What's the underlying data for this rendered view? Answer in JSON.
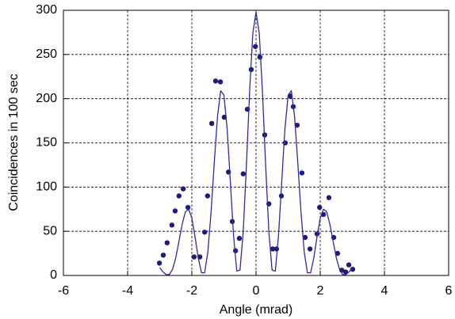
{
  "chart_data": {
    "type": "scatter",
    "xlabel": "Angle (mrad)",
    "ylabel": "Coincidences in 100 sec",
    "xlim": [
      -6,
      6
    ],
    "ylim": [
      0,
      300
    ],
    "xticks": [
      -6,
      -4,
      -2,
      0,
      2,
      4,
      6
    ],
    "yticks": [
      0,
      50,
      100,
      150,
      200,
      250,
      300
    ],
    "grid": true,
    "series": [
      {
        "mode": "markers",
        "color": "#1c1c7a",
        "x": [
          -3.01,
          -2.89,
          -2.77,
          -2.62,
          -2.52,
          -2.4,
          -2.27,
          -2.12,
          -1.93,
          -1.75,
          -1.6,
          -1.51,
          -1.38,
          -1.26,
          -1.11,
          -0.99,
          -0.86,
          -0.74,
          -0.64,
          -0.52,
          -0.4,
          -0.27,
          -0.15,
          -0.02,
          0.12,
          0.27,
          0.4,
          0.52,
          0.64,
          0.79,
          0.91,
          1.06,
          1.16,
          1.28,
          1.43,
          1.53,
          1.68,
          1.9,
          1.98,
          2.1,
          2.27,
          2.42,
          2.54,
          2.67,
          2.79,
          2.89,
          3.01
        ],
        "y": [
          14,
          23,
          37,
          57,
          73,
          90,
          98,
          77,
          21,
          21,
          49,
          90,
          172,
          220,
          219,
          179,
          117,
          61,
          28,
          42,
          115,
          188,
          233,
          259,
          247,
          159,
          81,
          30,
          30,
          90,
          150,
          203,
          191,
          170,
          116,
          43,
          30,
          47,
          77,
          69,
          88,
          43,
          25,
          6,
          4,
          12,
          7
        ]
      },
      {
        "mode": "line",
        "color": "#2b2b9c",
        "x": [
          -3.0,
          -2.9,
          -2.8,
          -2.7,
          -2.6,
          -2.5,
          -2.4,
          -2.3,
          -2.2,
          -2.1,
          -2.0,
          -1.9,
          -1.8,
          -1.7,
          -1.6,
          -1.5,
          -1.4,
          -1.3,
          -1.2,
          -1.1,
          -1.0,
          -0.9,
          -0.8,
          -0.7,
          -0.6,
          -0.5,
          -0.4,
          -0.3,
          -0.2,
          -0.1,
          0.0,
          0.1,
          0.2,
          0.3,
          0.4,
          0.5,
          0.6,
          0.7,
          0.8,
          0.9,
          1.0,
          1.1,
          1.2,
          1.3,
          1.4,
          1.5,
          1.6,
          1.7,
          1.8,
          1.9,
          2.0,
          2.1,
          2.2,
          2.3,
          2.4,
          2.5,
          2.6,
          2.7,
          2.8,
          2.9,
          3.0
        ],
        "y": [
          9,
          4,
          1,
          1,
          7,
          20,
          39,
          58,
          72,
          75,
          65,
          44,
          20,
          3,
          3,
          27,
          72,
          128,
          180,
          209,
          204,
          166,
          106,
          45,
          5,
          6,
          49,
          124,
          208,
          274,
          298,
          274,
          208,
          124,
          49,
          6,
          5,
          45,
          106,
          166,
          204,
          209,
          180,
          128,
          72,
          27,
          3,
          3,
          20,
          44,
          65,
          75,
          72,
          58,
          39,
          20,
          7,
          1,
          1,
          4,
          9
        ]
      }
    ]
  }
}
